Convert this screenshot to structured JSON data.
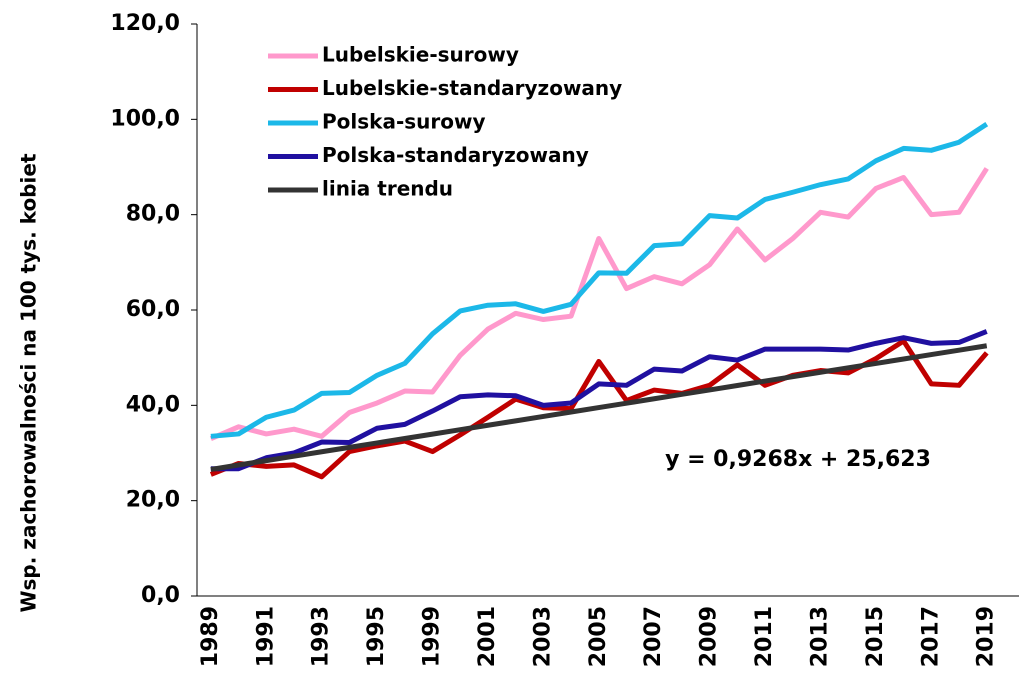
{
  "chart_data": {
    "type": "line",
    "y_label": "Wsp. zachorowalności na 100 tys. kobiet",
    "annotation": "y = 0,9268x + 25,623",
    "categories": [
      "1989",
      null,
      "1991",
      null,
      "1993",
      null,
      "1995",
      null,
      "1999",
      null,
      "2001",
      null,
      "2003",
      null,
      "2005",
      null,
      "2007",
      null,
      "2009",
      null,
      "2011",
      null,
      "2013",
      null,
      "2015",
      null,
      "2017",
      null,
      "2019"
    ],
    "series": [
      {
        "name": "Lubelskie-surowy",
        "color": "#ff99cc",
        "values": [
          33,
          35.5,
          34,
          35,
          33.5,
          38.5,
          40.5,
          43,
          42.8,
          50.5,
          56,
          59.3,
          58,
          58.7,
          75,
          64.5,
          67,
          65.5,
          69.5,
          77,
          70.5,
          75,
          80.5,
          79.5,
          85.5,
          87.8,
          80,
          80.5,
          89.7
        ]
      },
      {
        "name": "Lubelskie-standaryzowany",
        "color": "#c00000",
        "values": [
          25.5,
          27.8,
          27.2,
          27.5,
          25,
          30.3,
          31.5,
          32.5,
          30.3,
          33.8,
          37.5,
          41.3,
          39.5,
          39.3,
          49.2,
          41,
          43.2,
          42.5,
          44.2,
          48.5,
          44.2,
          46.3,
          47.3,
          46.8,
          49.8,
          53.5,
          44.5,
          44.2,
          51
        ]
      },
      {
        "name": "Polska-surowy",
        "color": "#1cb8e8",
        "values": [
          33.5,
          34,
          37.5,
          39,
          42.5,
          42.7,
          46.3,
          48.8,
          55,
          59.8,
          61,
          61.3,
          59.7,
          61.2,
          67.8,
          67.7,
          73.5,
          73.9,
          79.8,
          79.3,
          83.2,
          84.7,
          86.3,
          87.5,
          91.3,
          93.9,
          93.5,
          95.2,
          99
        ]
      },
      {
        "name": "Polska-standaryzowany",
        "color": "#2010a0",
        "values": [
          26.7,
          26.7,
          29,
          30,
          32.3,
          32.2,
          35.2,
          36,
          38.8,
          41.8,
          42.2,
          42,
          40,
          40.5,
          44.5,
          44.2,
          47.6,
          47.2,
          50.2,
          49.5,
          51.8,
          51.8,
          51.8,
          51.6,
          53,
          54.2,
          53,
          53.2,
          55.5
        ]
      },
      {
        "name": "linia trendu",
        "color": "#333333",
        "values": [
          26.55,
          27.48,
          28.4,
          29.33,
          30.26,
          31.18,
          32.11,
          33.04,
          33.96,
          34.89,
          35.82,
          36.74,
          37.67,
          38.6,
          39.53,
          40.45,
          41.38,
          42.31,
          43.23,
          44.16,
          45.09,
          46.01,
          46.94,
          47.87,
          48.79,
          49.72,
          50.65,
          51.57,
          52.5
        ]
      }
    ],
    "ylim": [
      0,
      120
    ],
    "yticks": [
      {
        "value": 0,
        "label": "0,0"
      },
      {
        "value": 20,
        "label": "20,0"
      },
      {
        "value": 40,
        "label": "40,0"
      },
      {
        "value": 60,
        "label": "60,0"
      },
      {
        "value": 80,
        "label": "80,0"
      },
      {
        "value": 100,
        "label": "100,0"
      },
      {
        "value": 120,
        "label": "120,0"
      }
    ],
    "grid": false,
    "legend": "top-left"
  }
}
